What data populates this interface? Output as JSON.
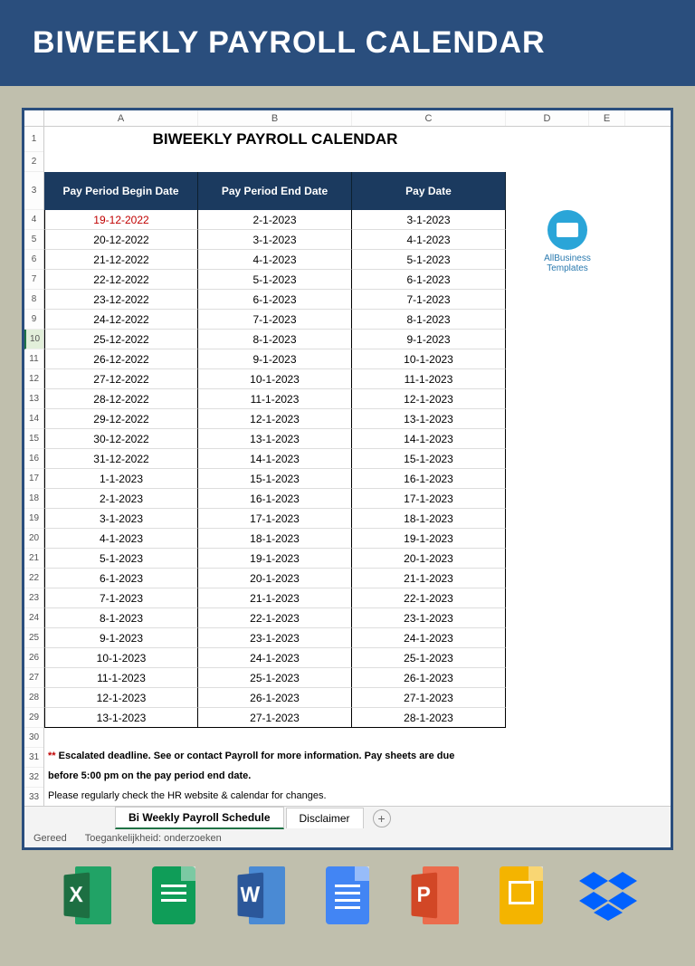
{
  "banner": {
    "title": "BIWEEKLY PAYROLL CALENDAR"
  },
  "spreadsheet": {
    "title": "BIWEEKLY PAYROLL CALENDAR",
    "column_letters": [
      "A",
      "B",
      "C",
      "D",
      "E"
    ],
    "headers": [
      "Pay Period Begin Date",
      "Pay Period End Date",
      "Pay Date"
    ],
    "header_bg": "#1b3a5f",
    "header_fg": "#ffffff",
    "escalated_color": "#c00000",
    "row_numbers_start": 1,
    "selected_row": 10,
    "rows": [
      {
        "begin": "19-12-2022",
        "end": "2-1-2023",
        "pay": "3-1-2023",
        "escalated": true
      },
      {
        "begin": "20-12-2022",
        "end": "3-1-2023",
        "pay": "4-1-2023"
      },
      {
        "begin": "21-12-2022",
        "end": "4-1-2023",
        "pay": "5-1-2023"
      },
      {
        "begin": "22-12-2022",
        "end": "5-1-2023",
        "pay": "6-1-2023"
      },
      {
        "begin": "23-12-2022",
        "end": "6-1-2023",
        "pay": "7-1-2023"
      },
      {
        "begin": "24-12-2022",
        "end": "7-1-2023",
        "pay": "8-1-2023"
      },
      {
        "begin": "25-12-2022",
        "end": "8-1-2023",
        "pay": "9-1-2023"
      },
      {
        "begin": "26-12-2022",
        "end": "9-1-2023",
        "pay": "10-1-2023"
      },
      {
        "begin": "27-12-2022",
        "end": "10-1-2023",
        "pay": "11-1-2023"
      },
      {
        "begin": "28-12-2022",
        "end": "11-1-2023",
        "pay": "12-1-2023"
      },
      {
        "begin": "29-12-2022",
        "end": "12-1-2023",
        "pay": "13-1-2023"
      },
      {
        "begin": "30-12-2022",
        "end": "13-1-2023",
        "pay": "14-1-2023"
      },
      {
        "begin": "31-12-2022",
        "end": "14-1-2023",
        "pay": "15-1-2023"
      },
      {
        "begin": "1-1-2023",
        "end": "15-1-2023",
        "pay": "16-1-2023"
      },
      {
        "begin": "2-1-2023",
        "end": "16-1-2023",
        "pay": "17-1-2023"
      },
      {
        "begin": "3-1-2023",
        "end": "17-1-2023",
        "pay": "18-1-2023"
      },
      {
        "begin": "4-1-2023",
        "end": "18-1-2023",
        "pay": "19-1-2023"
      },
      {
        "begin": "5-1-2023",
        "end": "19-1-2023",
        "pay": "20-1-2023"
      },
      {
        "begin": "6-1-2023",
        "end": "20-1-2023",
        "pay": "21-1-2023"
      },
      {
        "begin": "7-1-2023",
        "end": "21-1-2023",
        "pay": "22-1-2023"
      },
      {
        "begin": "8-1-2023",
        "end": "22-1-2023",
        "pay": "23-1-2023"
      },
      {
        "begin": "9-1-2023",
        "end": "23-1-2023",
        "pay": "24-1-2023"
      },
      {
        "begin": "10-1-2023",
        "end": "24-1-2023",
        "pay": "25-1-2023"
      },
      {
        "begin": "11-1-2023",
        "end": "25-1-2023",
        "pay": "26-1-2023"
      },
      {
        "begin": "12-1-2023",
        "end": "26-1-2023",
        "pay": "27-1-2023"
      },
      {
        "begin": "13-1-2023",
        "end": "27-1-2023",
        "pay": "28-1-2023"
      }
    ],
    "footnotes": {
      "stars": "**",
      "line1": " Escalated deadline. See  or contact Payroll for more information. Pay sheets are due",
      "line2": "before 5:00 pm on the pay period end date.",
      "line3": "Please regularly check the HR website & calendar for changes."
    },
    "brand": {
      "name": "AllBusiness",
      "sub": "Templates"
    },
    "tabs": {
      "active": "Bi Weekly Payroll Schedule",
      "other": "Disclaimer",
      "add": "+"
    },
    "status": {
      "ready": "Gereed",
      "accessibility": "Toegankelijkheid: onderzoeken"
    }
  },
  "apps": {
    "excel": {
      "letter": "X",
      "dark": "#1d6f42",
      "light": "#21a366"
    },
    "gsheets": {
      "color": "#0f9d58"
    },
    "word": {
      "letter": "W",
      "dark": "#2b579a",
      "light": "#4a8ad4"
    },
    "gdocs": {
      "color": "#4285f4"
    },
    "ppt": {
      "letter": "P",
      "dark": "#d24726",
      "light": "#eb6c4d"
    },
    "gslides": {
      "color": "#f4b400"
    },
    "dropbox": {
      "color": "#0061ff"
    }
  }
}
